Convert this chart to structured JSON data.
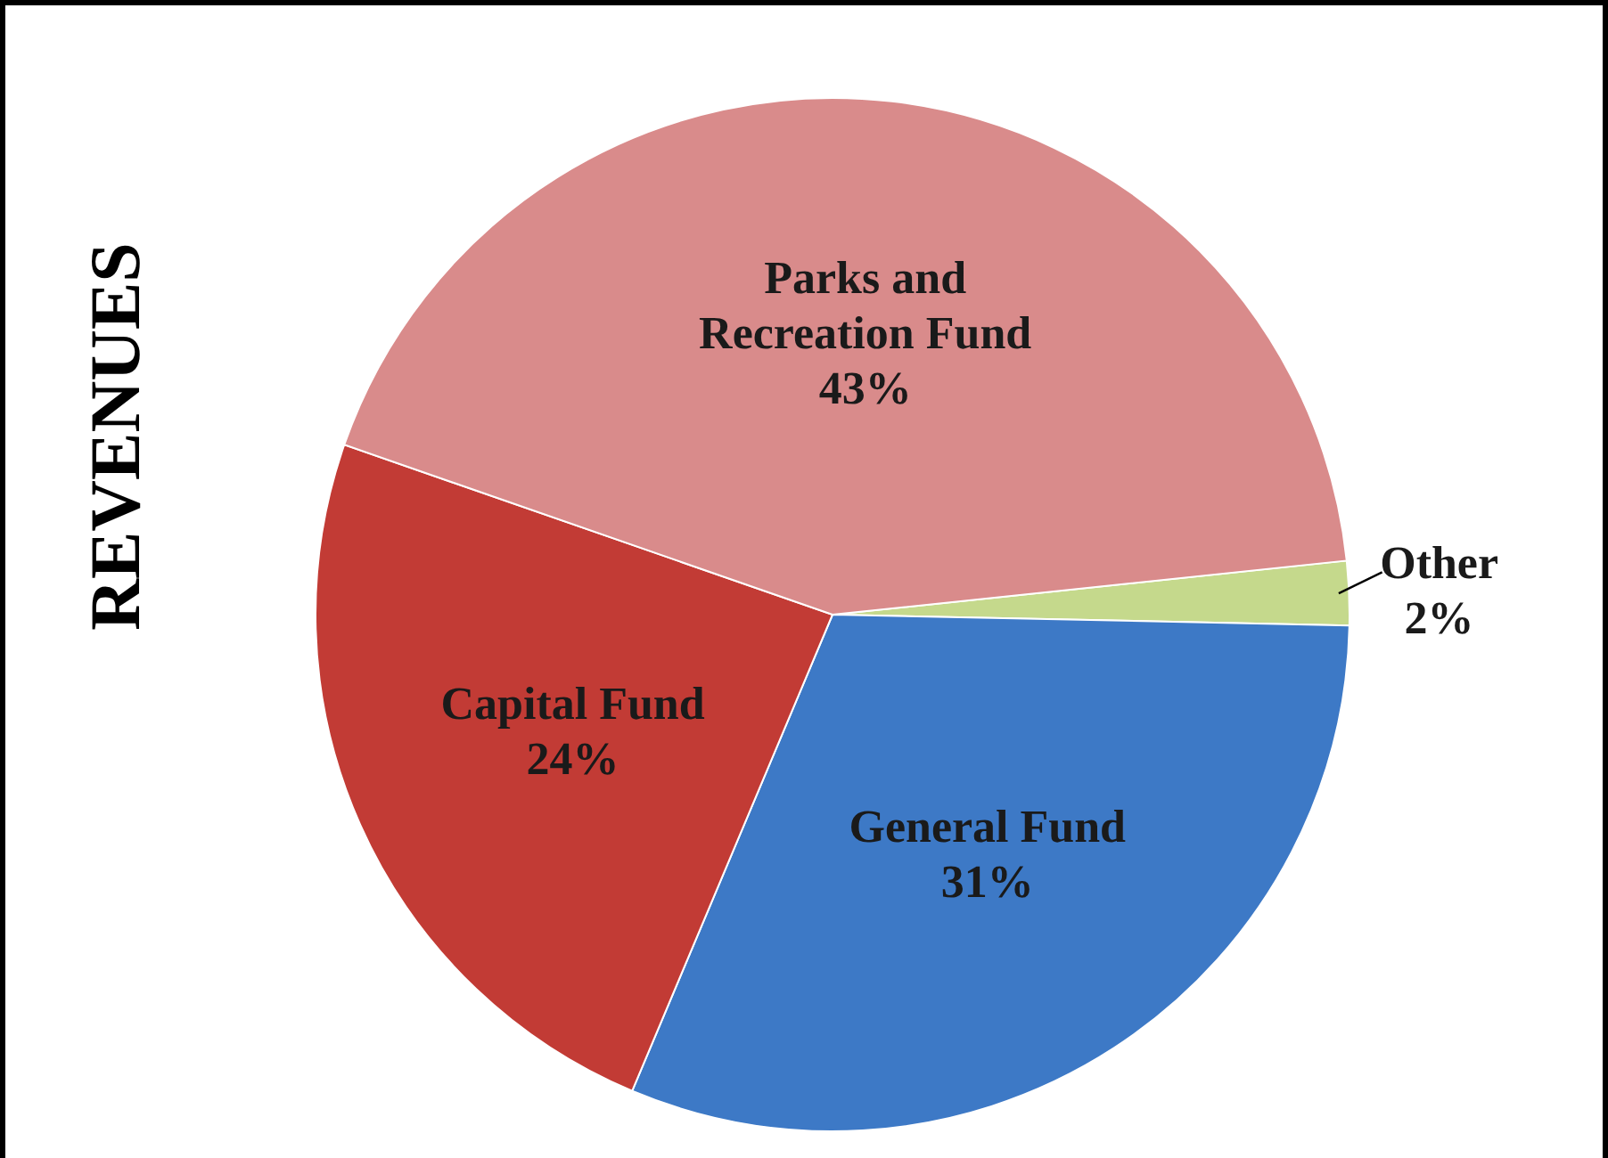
{
  "chart_data": {
    "type": "pie",
    "title": "REVENUES",
    "categories": [
      "Other",
      "General Fund",
      "Capital Fund",
      "Parks and Recreation Fund"
    ],
    "values": [
      2,
      31,
      24,
      43
    ],
    "colors": [
      "#c5d98c",
      "#3d79c6",
      "#c23b35",
      "#d98b8b"
    ],
    "value_labels": [
      "2%",
      "31%",
      "24%",
      "43%"
    ]
  }
}
